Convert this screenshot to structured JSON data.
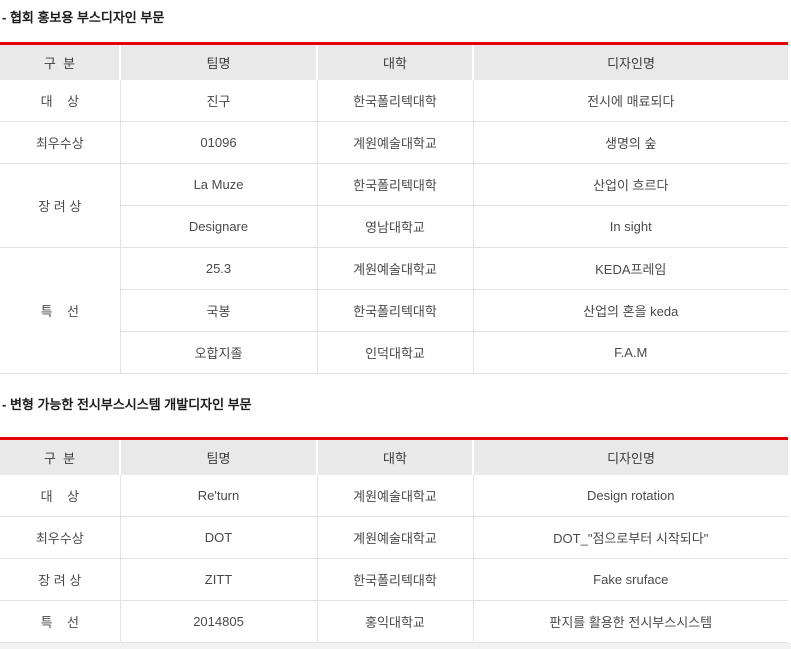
{
  "colors": {
    "accent_red": "#e80000",
    "header_bg": "#e9e9e9",
    "grid_line": "#e3e3e3",
    "text": "#4a4a4a"
  },
  "sections": [
    {
      "title": "- 협회 홍보용 부스디자인 부문",
      "headers": [
        "구  분",
        "팀명",
        "대학",
        "디자인명"
      ],
      "groups": [
        {
          "rank": "대    상",
          "entries": [
            {
              "team": "진구",
              "university": "한국폴리텍대학",
              "design": "전시에 매료되다"
            }
          ]
        },
        {
          "rank": "최우수상",
          "entries": [
            {
              "team": "01096",
              "university": "계원예술대학교",
              "design": "생명의 숲"
            }
          ]
        },
        {
          "rank": "장 려 상",
          "entries": [
            {
              "team": "La Muze",
              "university": "한국폴리텍대학",
              "design": "산업이 흐르다"
            },
            {
              "team": "Designare",
              "university": "영남대학교",
              "design": "In sight"
            }
          ]
        },
        {
          "rank": "특    선",
          "entries": [
            {
              "team": "25.3",
              "university": "계원예술대학교",
              "design": "KEDA프레임"
            },
            {
              "team": "국봉",
              "university": "한국폴리텍대학",
              "design": "산업의 혼을 keda"
            },
            {
              "team": "오합지졸",
              "university": "인덕대학교",
              "design": "F.A.M"
            }
          ]
        }
      ]
    },
    {
      "title": "- 변형 가능한 전시부스시스템 개발디자인 부문",
      "headers": [
        "구  분",
        "팀명",
        "대학",
        "디자인명"
      ],
      "groups": [
        {
          "rank": "대    상",
          "entries": [
            {
              "team": "Re'turn",
              "university": "계원예술대학교",
              "design": "Design rotation"
            }
          ]
        },
        {
          "rank": "최우수상",
          "entries": [
            {
              "team": "DOT",
              "university": "계원예술대학교",
              "design": "DOT_\"점으로부터 시작되다\""
            }
          ]
        },
        {
          "rank": "장 려 상",
          "entries": [
            {
              "team": "ZITT",
              "university": "한국폴리텍대학",
              "design": "Fake sruface"
            }
          ]
        },
        {
          "rank": "특    선",
          "entries": [
            {
              "team": "2014805",
              "university": "홍익대학교",
              "design": "판지를 활용한 전시부스시스템"
            }
          ]
        }
      ]
    }
  ]
}
